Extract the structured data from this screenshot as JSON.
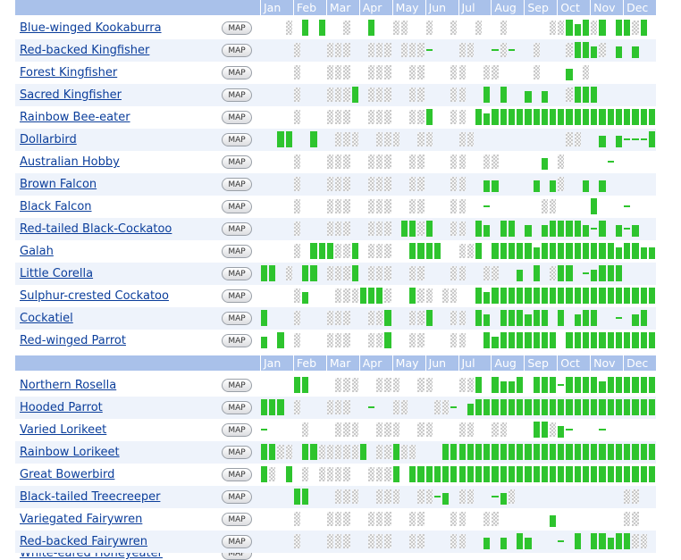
{
  "months": [
    "Jan",
    "Feb",
    "Mar",
    "Apr",
    "May",
    "Jun",
    "Jul",
    "Aug",
    "Sep",
    "Oct",
    "Nov",
    "Dec"
  ],
  "map_label": "MAP",
  "colors": {
    "header": "#a9c1ea",
    "observed": "#2ec42e",
    "link": "#0b3e9b",
    "alt_row": "#eef3fb"
  },
  "legend_codes": {
    "B": "observed-high",
    "H": "observed-low",
    "L": "observed-trace",
    "U": "no-data"
  },
  "sections": [
    {
      "birds": [
        {
          "name": "Blue-winged Kookaburra",
          "weeks": "000U0B0B00U00B00UU00U00U00U00U00000UUBHBUB0BBUB00UL000BBUU00"
        },
        {
          "name": "Red-backed Kingfisher",
          "weeks": "0000U000UUU00UUU0UUUL000UU00LUL00U000UBBHU0H0H000000000UU00"
        },
        {
          "name": "Forest Kingfisher",
          "weeks": "0000U000UUU00UUU00UU000UU00UU0000U000H0U00000000000B0UU00"
        },
        {
          "name": "Sacred Kingfisher",
          "weeks": "0000U000UUUB0UUU00UU000UU00B0B00H0H00UBBB000000000B00UU00"
        },
        {
          "name": "Rainbow Bee-eater",
          "weeks": "0000U000UUU00UUU00UUB00UU0BHBBBBBBBBBBBBBBBBBBBBBBBBBBBBHBB"
        },
        {
          "name": "Dollarbird",
          "weeks": "00BB00B00UUU00UUU00UU000UU00000000000UU00H0HLLLBB0B0HBBBB0"
        },
        {
          "name": "Australian Hobby",
          "weeks": "0000U000UUU00UUU00UU000UU00UU00000H0U00000L000000000UU0"
        },
        {
          "name": "Brown Falcon",
          "weeks": "0000U000UUU00UUU00UU000UU00HH0000H0HU00H0H0000000BBBUU00"
        },
        {
          "name": "Black Falcon",
          "weeks": "0000U000UUU00UUU00UU000UU00L000000UU0000B000L00000UU00"
        },
        {
          "name": "Red-tailed Black-Cockatoo",
          "weeks": "0000U000UUU00UUU0BBUB00UU0BH0BB0H0HBBBBHLB0HLH00HBBBBUU00"
        }
      ]
    },
    {
      "birds": [
        {
          "name": "Galah",
          "weeks": "0000U0BBBUUB0UUU00BBBB00UUB0BBBBBHBBBBBBBBBHBBHHBB0BBUU00"
        },
        {
          "name": "Little Corella",
          "weeks": "BB0U0BB0UUUB0UUU00UU000UU00UU00H0B0UBB0LHBBB0000BBBUU00"
        },
        {
          "name": "Sulphur-crested Cockatoo",
          "weeks": "0000UH000UUUBBBU00BUU0UU00BHBBBBBBBBBBBBBBBBBBBBBBBBBBBB0"
        },
        {
          "name": "Cockatiel",
          "weeks": "B000U000UUU00UUB00UUB00UU0BH0BBBHBB0B0HBB00L0HB0UU00"
        },
        {
          "name": "Red-winged Parrot",
          "weeks": "H0B0U000UUU00UUB00UU000UU00BHBBBBBBB0BBBBBBBBBBBBBBBBBBBB"
        }
      ]
    },
    {
      "header": true,
      "birds": [
        {
          "name": "Northern Rosella",
          "weeks": "0000BB000UUU00UUU00UU000UUB0BHHB0BBBLBBBBHBBBBBBHUU00"
        },
        {
          "name": "Hooded Parrot",
          "weeks": "BBB0U000UUU00L00UU000UUL0HBBBBBBBBBBBBBBBBBBBBBBBBBBLBBB"
        },
        {
          "name": "Varied Lorikeet",
          "weeks": "L0000U000UUU00UUU00UU000UU00UU000BBUHL000L000000UU00"
        },
        {
          "name": "Rainbow Lorikeet",
          "weeks": "BBUU0BBUUUUUB0UUBUU000BBBBBBBBBBBBBBBBBBBBBBBBBBBBBBBBBB0"
        },
        {
          "name": "Great Bowerbird",
          "weeks": "BU0B0U0UUUU00UUUB0BBBBBBBBBBBBBBBBBBBBBBBBBBBBBBBBBBBBBBB"
        },
        {
          "name": "Black-tailed Treecreeper",
          "weeks": "0000BB000UUU00UUU00UULH0UU00LHU0000000000000UU00"
        },
        {
          "name": "Variegated Fairywren",
          "weeks": "0000U000UUU00UUU00UU000UU00UU000000H00000000UU00"
        },
        {
          "name": "Red-backed Fairywren",
          "weeks": "0000U000UUU00UUU00UU000UU00H0H0BH000L0B0BBHBBUU00"
        }
      ]
    }
  ],
  "partial_row": {
    "name": "White-eared Honeyeater"
  }
}
